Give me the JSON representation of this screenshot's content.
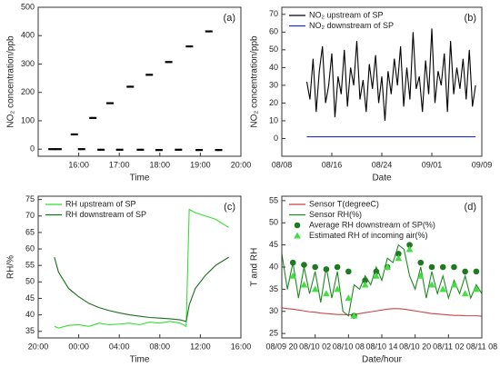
{
  "chart_data": [
    {
      "type": "scatter",
      "label": "(a)",
      "xlabel": "Time",
      "ylabel": "NO₂ concentration/ppb",
      "xlim": [
        15,
        20
      ],
      "ylim": [
        -25,
        500
      ],
      "xticks": [
        {
          "value": 16,
          "label": "16:00"
        },
        {
          "value": 17,
          "label": "17:00"
        },
        {
          "value": 18,
          "label": "18:00"
        },
        {
          "value": 19,
          "label": "19:00"
        },
        {
          "value": 20,
          "label": "20:00"
        }
      ],
      "yticks": [
        0,
        100,
        200,
        300,
        400,
        500
      ],
      "x": [
        15.34,
        15.49,
        15.89,
        16.07,
        16.35,
        16.55,
        16.77,
        17.01,
        17.27,
        17.52,
        17.74,
        17.98,
        18.22,
        18.46,
        18.73,
        18.97,
        19.21,
        19.45
      ],
      "series": [
        {
          "color": "#000000",
          "marker": "dash",
          "values": [
            0,
            0,
            52,
            0,
            110,
            -2,
            162,
            -2,
            220,
            -2,
            262,
            -3,
            307,
            -2,
            362,
            -3,
            415,
            -3
          ]
        }
      ]
    },
    {
      "type": "line",
      "label": "(b)",
      "xlabel": "Date",
      "ylabel": "NO₂ concentration/ppb",
      "xlim": [
        0,
        32
      ],
      "ylim": [
        -10,
        74
      ],
      "xticks": [
        {
          "value": 0,
          "label": "08/08"
        },
        {
          "value": 8,
          "label": "08/16"
        },
        {
          "value": 16,
          "label": "08/24"
        },
        {
          "value": 24,
          "label": "09/01"
        },
        {
          "value": 32,
          "label": "09/09"
        }
      ],
      "yticks": [
        0,
        10,
        20,
        30,
        40,
        50,
        60,
        70
      ],
      "legend": "upper left",
      "x": [
        4,
        4.5,
        5,
        5.5,
        6,
        6.5,
        7,
        7.5,
        8,
        8.5,
        9,
        9.5,
        10,
        10.5,
        11,
        11.5,
        12,
        12.5,
        13,
        13.5,
        14,
        14.5,
        15,
        15.5,
        16,
        16.5,
        17,
        17.5,
        18,
        18.5,
        19,
        19.5,
        20,
        20.5,
        21,
        21.5,
        22,
        22.5,
        23,
        23.5,
        24,
        24.5,
        25,
        25.5,
        26,
        26.5,
        27,
        27.5,
        28,
        28.5,
        29,
        29.5,
        30,
        30.5,
        31
      ],
      "series": [
        {
          "name": "NO₂ upstream of SP",
          "color": "#000000",
          "values": [
            32,
            22,
            45,
            15,
            38,
            52,
            20,
            30,
            48,
            12,
            35,
            25,
            50,
            18,
            40,
            30,
            55,
            22,
            33,
            15,
            42,
            28,
            47,
            20,
            35,
            10,
            38,
            25,
            45,
            30,
            52,
            18,
            40,
            22,
            60,
            28,
            35,
            15,
            44,
            25,
            62,
            20,
            38,
            30,
            48,
            15,
            55,
            25,
            40,
            28,
            45,
            22,
            50,
            18,
            30
          ]
        },
        {
          "name": "NO₂ downstream of SP",
          "color": "#2233bb",
          "values": [
            1,
            1,
            1,
            1,
            1,
            1,
            1,
            1,
            1,
            1,
            1,
            1,
            1,
            1,
            1,
            1,
            1,
            1,
            1,
            1,
            1,
            1,
            1,
            1,
            1,
            1,
            1,
            1,
            1,
            1,
            1,
            1,
            1,
            1,
            1,
            1,
            1,
            1,
            1,
            1,
            1,
            1,
            1,
            1,
            1,
            1,
            1,
            1,
            1,
            1,
            1,
            1,
            1,
            1,
            1
          ]
        }
      ]
    },
    {
      "type": "line",
      "label": "(c)",
      "xlabel": "Time",
      "ylabel": "RH/%",
      "xlim": [
        20,
        40
      ],
      "ylim": [
        33,
        76
      ],
      "xticks": [
        {
          "value": 20,
          "label": "20:00"
        },
        {
          "value": 24,
          "label": "00:00"
        },
        {
          "value": 28,
          "label": "04:00"
        },
        {
          "value": 32,
          "label": "08:00"
        },
        {
          "value": 36,
          "label": "12:00"
        },
        {
          "value": 40,
          "label": "16:00"
        }
      ],
      "yticks": [
        35,
        40,
        45,
        50,
        55,
        60,
        65,
        70,
        75
      ],
      "legend": "upper left",
      "x": [
        21.6,
        22,
        23,
        24,
        25,
        26,
        27,
        28,
        29,
        30,
        31,
        32,
        33,
        34,
        34.6,
        34.9,
        35.5,
        36.5,
        37.5,
        38.8
      ],
      "series": [
        {
          "name": "RH upstream of SP",
          "color": "#33e033",
          "values": [
            36.5,
            36,
            36.8,
            37,
            36.5,
            37.5,
            37,
            37.2,
            37.5,
            37,
            37.8,
            37.5,
            38,
            37.5,
            36.5,
            72,
            71,
            70,
            69,
            66.5
          ]
        },
        {
          "name": "RH downstream of SP",
          "color": "#1a6e1a",
          "values": [
            57.5,
            53,
            48,
            45.5,
            43.5,
            42.2,
            41.3,
            40.6,
            40,
            39.6,
            39.2,
            39,
            38.8,
            38.5,
            38,
            43,
            48,
            52,
            55,
            57.5
          ]
        }
      ]
    },
    {
      "type": "line",
      "label": "(d)",
      "xlabel": "Date/hour",
      "ylabel": "T and RH",
      "xlim": [
        0,
        36
      ],
      "ylim": [
        24,
        56
      ],
      "xticks": [
        {
          "value": 0,
          "label": "08/09 20"
        },
        {
          "value": 6,
          "label": "08/10 02"
        },
        {
          "value": 12,
          "label": "08/10 08"
        },
        {
          "value": 18,
          "label": "08/10 14"
        },
        {
          "value": 24,
          "label": "08/10 20"
        },
        {
          "value": 30,
          "label": "08/11 02"
        },
        {
          "value": 36,
          "label": "08/11 08"
        }
      ],
      "yticks": [
        25,
        30,
        35,
        40,
        45,
        50,
        55
      ],
      "legend": "upper left",
      "x": [
        0,
        1,
        2,
        3,
        4,
        5,
        6,
        7,
        8,
        9,
        10,
        11,
        12,
        13,
        14,
        15,
        16,
        17,
        18,
        19,
        20,
        21,
        22,
        23,
        24,
        25,
        26,
        27,
        28,
        29,
        30,
        31,
        32,
        33,
        34,
        35,
        36
      ],
      "series": [
        {
          "name": "Sensor T(degreeC)",
          "color": "#cc4444",
          "values": [
            30.8,
            30.6,
            30.5,
            30.3,
            30.1,
            29.9,
            29.8,
            29.6,
            29.5,
            29.4,
            29.3,
            29.3,
            29.2,
            29.3,
            29.5,
            29.7,
            29.9,
            30.1,
            30.3,
            30.5,
            30.6,
            30.6,
            30.5,
            30.3,
            30.1,
            29.9,
            29.7,
            29.5,
            29.4,
            29.3,
            29.2,
            29.1,
            29.1,
            29.0,
            29.0,
            29.0,
            28.9
          ]
        },
        {
          "name": "Sensor RH(%)",
          "color": "#228822",
          "values": [
            43,
            35,
            41,
            33,
            40,
            34,
            39,
            32,
            40,
            33,
            39,
            30,
            29,
            36,
            35,
            38,
            36,
            40,
            37,
            42,
            41,
            45,
            44,
            38,
            35,
            40,
            33,
            39,
            34,
            38,
            33,
            37,
            34,
            38,
            33,
            36,
            34
          ]
        },
        {
          "name": "Average RH downstream of SP(%)",
          "color": "#1f7a1f",
          "marker": "circle",
          "x": [
            2,
            4,
            6,
            8,
            10,
            12,
            13,
            15,
            17,
            19,
            21,
            23,
            25,
            27,
            29,
            31,
            33,
            35
          ],
          "values": [
            41,
            40.5,
            40,
            39.5,
            40,
            39,
            29,
            37,
            39,
            40,
            43,
            45,
            41,
            40,
            40,
            40,
            39,
            39
          ]
        },
        {
          "name": "Estimated RH of incoming air(%)",
          "color": "#44dd44",
          "marker": "triangle",
          "x": [
            2,
            4,
            6,
            8,
            10,
            12,
            13,
            15,
            17,
            19,
            21,
            23,
            25,
            27,
            29,
            31,
            33,
            35
          ],
          "values": [
            38,
            36,
            35,
            34,
            35,
            33,
            29,
            36,
            38,
            40,
            42,
            44,
            38,
            36,
            35,
            36,
            34,
            35
          ]
        }
      ]
    }
  ]
}
